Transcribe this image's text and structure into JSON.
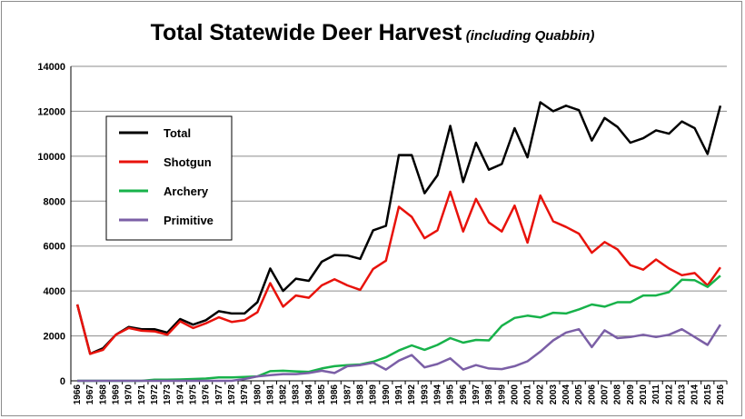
{
  "chart_data": {
    "type": "line",
    "title": "Total Statewide Deer Harvest",
    "subtitle": "(including Quabbin)",
    "xlabel": "",
    "ylabel": "",
    "ylim": [
      0,
      14000
    ],
    "yticks": [
      0,
      2000,
      4000,
      6000,
      8000,
      10000,
      12000,
      14000
    ],
    "grid": true,
    "legend_position": "upper-left",
    "x": [
      1966,
      1967,
      1968,
      1969,
      1970,
      1971,
      1972,
      1973,
      1974,
      1975,
      1976,
      1977,
      1978,
      1979,
      1980,
      1981,
      1982,
      1983,
      1984,
      1985,
      1986,
      1987,
      1988,
      1989,
      1990,
      1991,
      1992,
      1993,
      1994,
      1995,
      1996,
      1997,
      1998,
      1999,
      2000,
      2001,
      2002,
      2003,
      2004,
      2005,
      2006,
      2007,
      2008,
      2009,
      2010,
      2011,
      2012,
      2013,
      2014,
      2015,
      2016
    ],
    "series": [
      {
        "name": "Total",
        "color": "#000000",
        "values": [
          3400,
          1200,
          1450,
          2050,
          2400,
          2300,
          2300,
          2150,
          2750,
          2500,
          2700,
          3100,
          3000,
          3000,
          3500,
          5000,
          4000,
          4550,
          4450,
          5300,
          5600,
          5580,
          5430,
          6700,
          6900,
          10050,
          10050,
          8350,
          9150,
          11350,
          8850,
          10600,
          9400,
          9650,
          11250,
          9950,
          12400,
          12000,
          12250,
          12050,
          10700,
          11700,
          11300,
          10600,
          10800,
          11150,
          11000,
          11550,
          11250,
          10100,
          12250
        ]
      },
      {
        "name": "Shotgun",
        "color": "#e8120b",
        "values": [
          3400,
          1200,
          1380,
          2050,
          2350,
          2230,
          2200,
          2050,
          2650,
          2350,
          2560,
          2830,
          2620,
          2700,
          3050,
          4350,
          3300,
          3800,
          3700,
          4250,
          4520,
          4250,
          4050,
          4980,
          5350,
          7750,
          7300,
          6350,
          6700,
          8420,
          6650,
          8100,
          7050,
          6650,
          7800,
          6150,
          8250,
          7100,
          6850,
          6550,
          5700,
          6180,
          5850,
          5150,
          4950,
          5400,
          5000,
          4700,
          4800,
          4250,
          5050
        ]
      },
      {
        "name": "Archery",
        "color": "#17b24a",
        "values": [
          0,
          0,
          0,
          0,
          0,
          0,
          50,
          50,
          60,
          80,
          100,
          150,
          150,
          170,
          200,
          430,
          450,
          420,
          400,
          550,
          650,
          700,
          730,
          850,
          1050,
          1350,
          1580,
          1380,
          1600,
          1900,
          1700,
          1820,
          1800,
          2450,
          2800,
          2900,
          2820,
          3030,
          3000,
          3180,
          3400,
          3300,
          3500,
          3500,
          3800,
          3800,
          3950,
          4500,
          4480,
          4180,
          4680
        ]
      },
      {
        "name": "Primitive",
        "color": "#7b5fa6",
        "values": [
          0,
          0,
          0,
          0,
          0,
          0,
          0,
          0,
          0,
          0,
          0,
          0,
          0,
          80,
          200,
          250,
          300,
          300,
          350,
          450,
          350,
          650,
          700,
          800,
          500,
          900,
          1150,
          600,
          750,
          1000,
          500,
          700,
          550,
          520,
          650,
          870,
          1300,
          1800,
          2150,
          2300,
          1500,
          2250,
          1900,
          1950,
          2050,
          1950,
          2050,
          2300,
          1950,
          1600,
          2500
        ]
      }
    ]
  }
}
